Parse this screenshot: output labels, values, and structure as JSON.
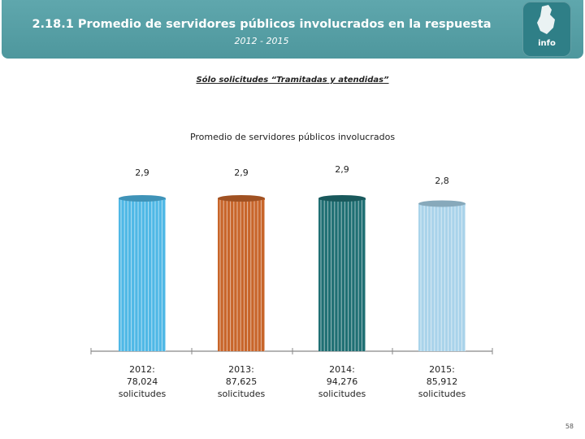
{
  "header": {
    "title": "2.18.1 Promedio de servidores públicos involucrados en la respuesta",
    "subtitle": "2012 - 2015",
    "logo_text": "info"
  },
  "filter_note": "Sólo solicitudes “Tramitadas y atendidas”",
  "page_number": "58",
  "colors": {
    "header": "#4e979d",
    "bar_2012": "#4fb8e6",
    "bar_2013": "#c8652a",
    "bar_2014": "#1f6f73",
    "bar_2015": "#a9d3ea"
  },
  "chart_data": {
    "type": "bar",
    "title": "Promedio de servidores públicos involucrados",
    "categories": [
      "2012: 78,024 solicitudes",
      "2013: 87,625 solicitudes",
      "2014: 94,276 solicitudes",
      "2015: 85,912 solicitudes"
    ],
    "category_lines": [
      [
        "2012:",
        "78,024",
        "solicitudes"
      ],
      [
        "2013:",
        "87,625",
        "solicitudes"
      ],
      [
        "2014:",
        "94,276",
        "solicitudes"
      ],
      [
        "2015:",
        "85,912",
        "solicitudes"
      ]
    ],
    "values": [
      2.9,
      2.9,
      2.9,
      2.8
    ],
    "value_labels": [
      "2,9",
      "2,9",
      "2,9",
      "2,8"
    ],
    "ylim": [
      0,
      2.9
    ],
    "xlabel": "",
    "ylabel": ""
  }
}
